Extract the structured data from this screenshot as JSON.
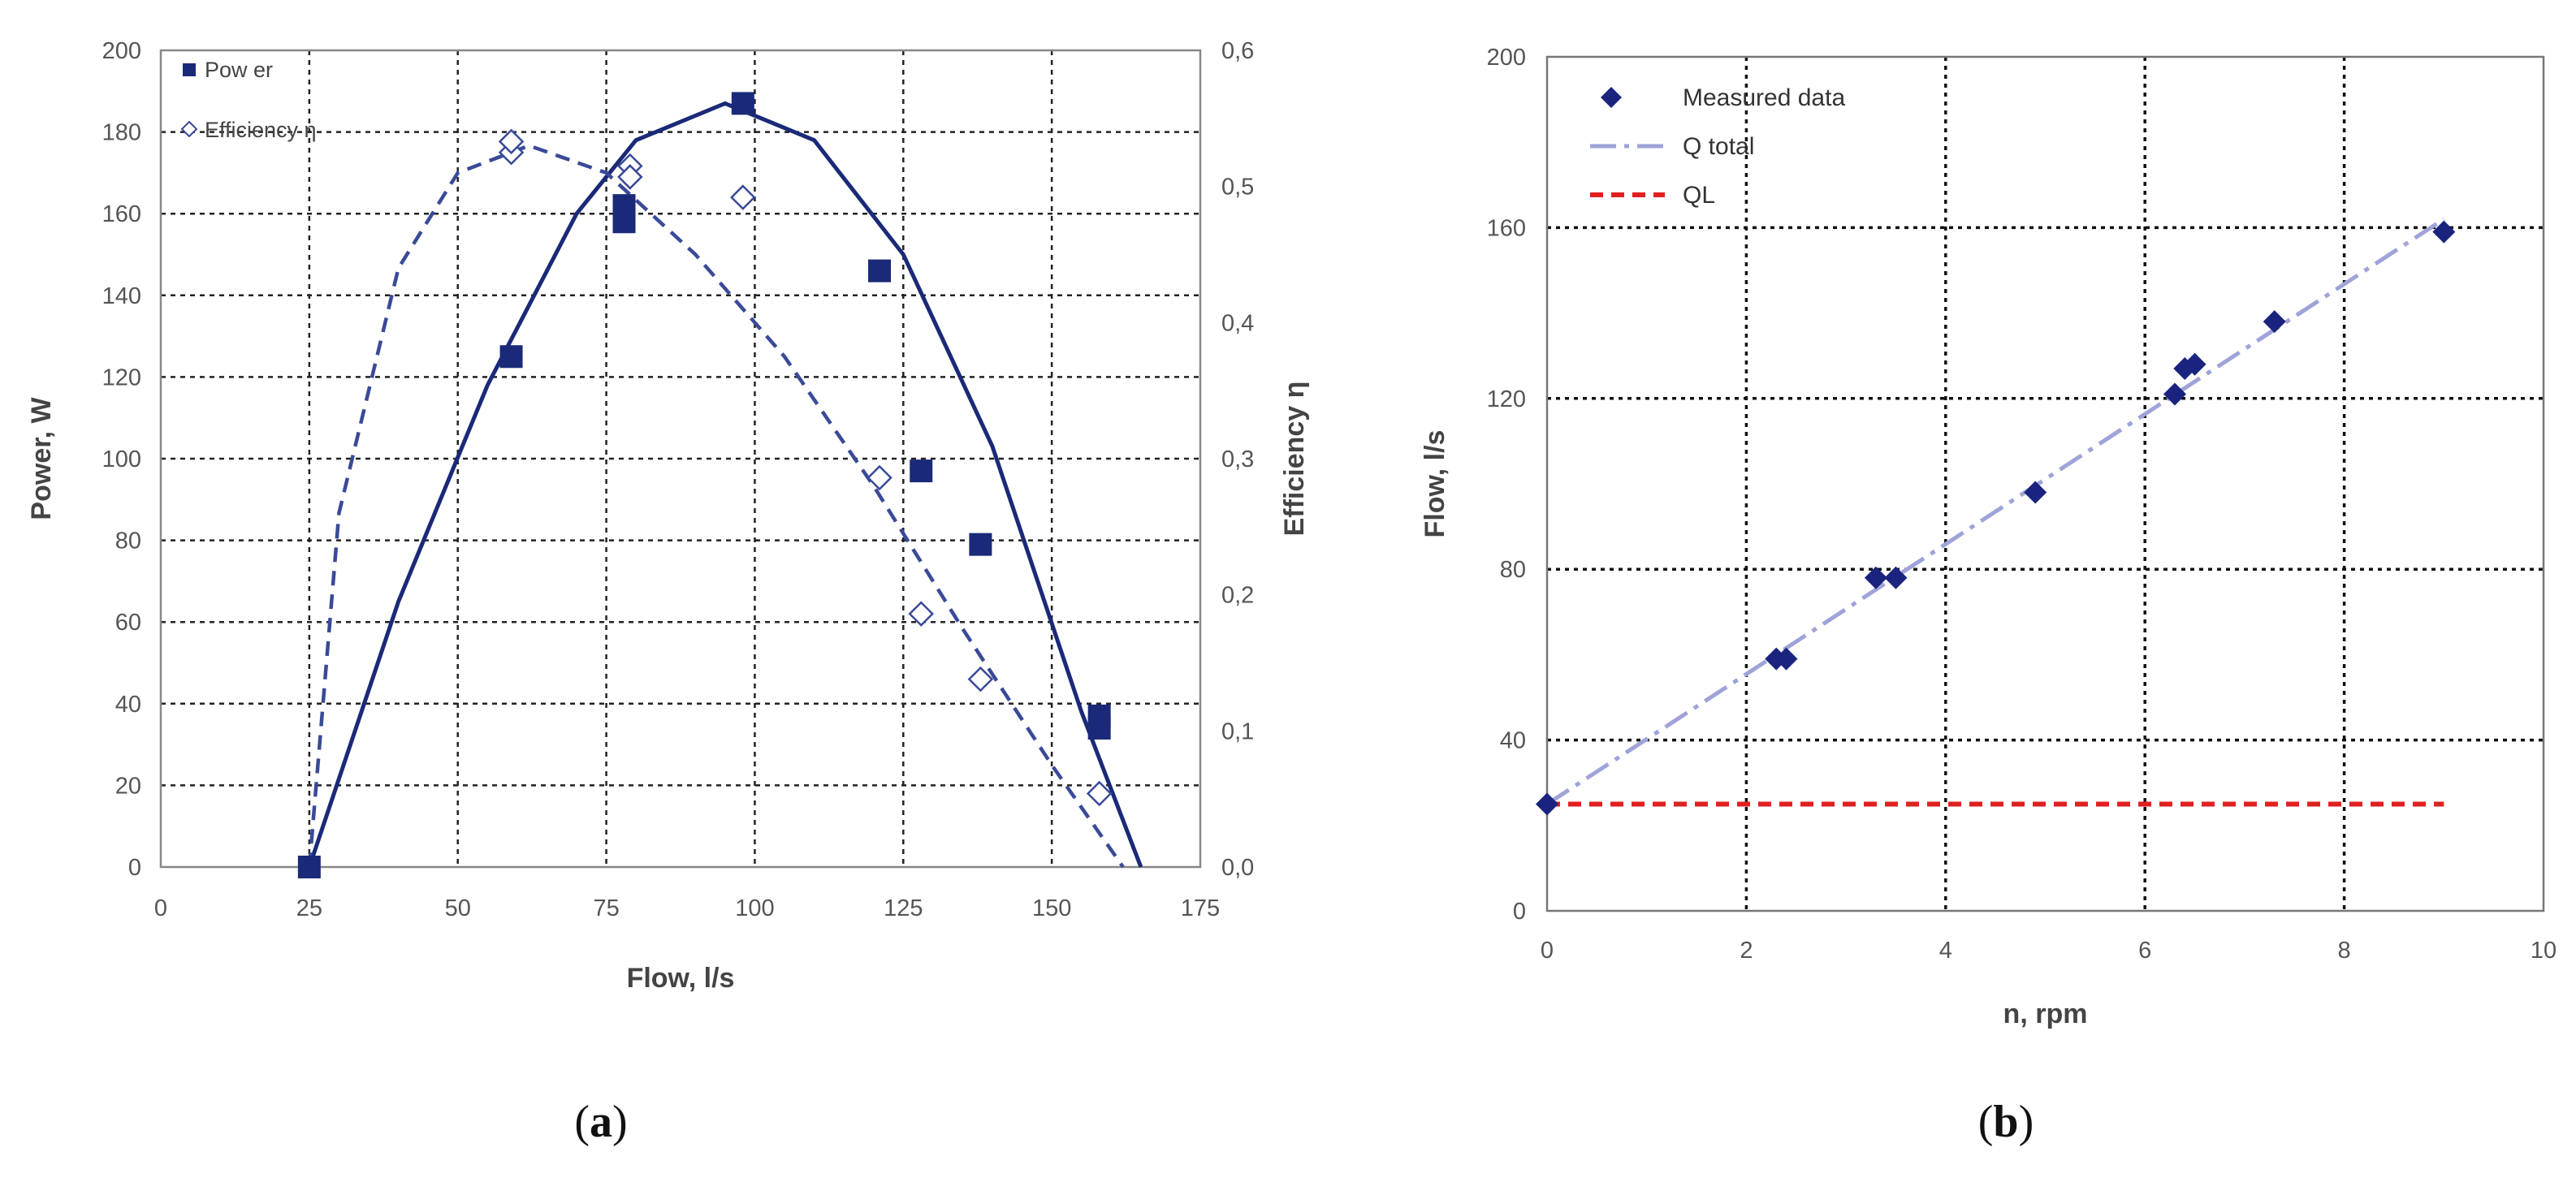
{
  "chart_data": [
    {
      "id": "a",
      "type": "scatter",
      "caption": "a",
      "xlabel": "Flow, l/s",
      "ylabel": "Power, W",
      "y2label": "Efficiency η",
      "xlim": [
        0,
        175
      ],
      "ylim": [
        0,
        200
      ],
      "y2lim": [
        0,
        0.6
      ],
      "xticks": [
        "0",
        "25",
        "50",
        "75",
        "100",
        "125",
        "150",
        "175"
      ],
      "yticks": [
        "0",
        "20",
        "40",
        "60",
        "80",
        "100",
        "120",
        "140",
        "160",
        "180",
        "200"
      ],
      "y2ticks": [
        "0,0",
        "0,1",
        "0,2",
        "0,3",
        "0,4",
        "0,5",
        "0,6"
      ],
      "grid": true,
      "legend_position": "top-left",
      "series": [
        {
          "name": "Power",
          "legend_label": "Pow er",
          "axis": "left",
          "marker": "filled-square",
          "color": "#1a2a78",
          "x": [
            25,
            59,
            78,
            78,
            98,
            121,
            128,
            138,
            158,
            158
          ],
          "y": [
            0,
            125,
            162,
            158,
            187,
            146,
            97,
            79,
            37,
            34
          ],
          "fit": {
            "style": "solid",
            "x": [
              25,
              40,
              55,
              70,
              80,
              95,
              110,
              125,
              140,
              155,
              165
            ],
            "y": [
              0,
              65,
              118,
              160,
              178,
              187,
              178,
              150,
              103,
              38,
              0
            ]
          }
        },
        {
          "name": "Efficiency η",
          "legend_label": "Efficiency η",
          "axis": "right",
          "marker": "hollow-diamond",
          "color": "#3a4a98",
          "x": [
            59,
            59,
            79,
            79,
            98,
            121,
            128,
            138,
            158
          ],
          "y": [
            0.525,
            0.533,
            0.515,
            0.507,
            0.492,
            0.286,
            0.186,
            0.138,
            0.054
          ],
          "fit": {
            "style": "dashed",
            "x": [
              25,
              30,
              40,
              50,
              62,
              75,
              90,
              105,
              120,
              135,
              150,
              162
            ],
            "y": [
              0,
              0.26,
              0.44,
              0.51,
              0.53,
              0.51,
              0.45,
              0.375,
              0.28,
              0.175,
              0.075,
              0
            ]
          }
        }
      ]
    },
    {
      "id": "b",
      "type": "scatter",
      "caption": "b",
      "xlabel": "n, rpm",
      "ylabel": "Flow, l/s",
      "xlim": [
        0,
        10
      ],
      "ylim": [
        0,
        200
      ],
      "xticks": [
        "0",
        "2",
        "4",
        "6",
        "8",
        "10"
      ],
      "yticks": [
        "0",
        "40",
        "80",
        "120",
        "160",
        "200"
      ],
      "grid": true,
      "legend_position": "top-left",
      "series": [
        {
          "name": "Measured data",
          "marker": "filled-diamond",
          "color": "#1a237e",
          "x": [
            0,
            2.3,
            2.4,
            3.3,
            3.5,
            4.9,
            6.3,
            6.4,
            6.5,
            7.3,
            9.0
          ],
          "y": [
            25,
            59,
            59,
            78,
            78,
            98,
            121,
            127,
            128,
            138,
            159
          ]
        },
        {
          "name": "Q total",
          "line_style": "dash-dot",
          "color": "#9fa3d8",
          "x": [
            0,
            9.0
          ],
          "y": [
            25,
            162
          ]
        },
        {
          "name": "QL",
          "line_style": "dashed",
          "color": "#e02020",
          "x": [
            0,
            9.0
          ],
          "y": [
            25,
            25
          ]
        }
      ]
    }
  ]
}
